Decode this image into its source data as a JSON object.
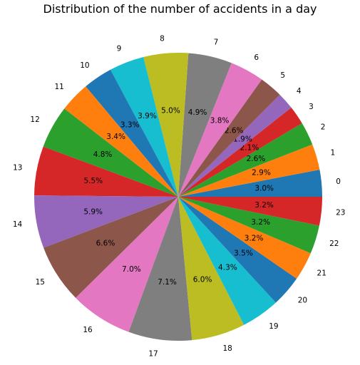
{
  "chart_data": {
    "type": "pie",
    "title": "Distribution of the number of accidents in a day",
    "categories": [
      "0",
      "1",
      "2",
      "3",
      "4",
      "5",
      "6",
      "7",
      "8",
      "9",
      "10",
      "11",
      "12",
      "13",
      "14",
      "15",
      "16",
      "17",
      "18",
      "19",
      "20",
      "21",
      "22",
      "23"
    ],
    "values": [
      3.0,
      2.9,
      2.6,
      2.1,
      1.9,
      2.6,
      3.8,
      4.9,
      5.0,
      3.9,
      3.3,
      3.4,
      4.8,
      5.5,
      5.9,
      6.6,
      7.0,
      7.1,
      6.0,
      4.3,
      3.5,
      3.2,
      3.2,
      3.2
    ],
    "percent_labels": [
      "3.0%",
      "2.9%",
      "2.6%",
      "2.1%",
      "1.9%",
      "2.6%",
      "3.8%",
      "4.9%",
      "5.0%",
      "3.9%",
      "3.3%",
      "3.4%",
      "4.8%",
      "5.5%",
      "5.9%",
      "6.6%",
      "7.0%",
      "7.1%",
      "6.0%",
      "4.3%",
      "3.5%",
      "3.2%",
      "3.2%",
      "3.2%"
    ],
    "colors": [
      "#1f77b4",
      "#ff7f0e",
      "#2ca02c",
      "#d62728",
      "#9467bd",
      "#8c564b",
      "#e377c2",
      "#7f7f7f",
      "#bcbd22",
      "#17becf",
      "#1f77b4",
      "#ff7f0e",
      "#2ca02c",
      "#d62728",
      "#9467bd",
      "#8c564b",
      "#e377c2",
      "#7f7f7f",
      "#bcbd22",
      "#17becf",
      "#1f77b4",
      "#ff7f0e",
      "#2ca02c",
      "#d62728"
    ],
    "start_angle_deg": 0,
    "direction": "counterclockwise",
    "legend": "none"
  }
}
